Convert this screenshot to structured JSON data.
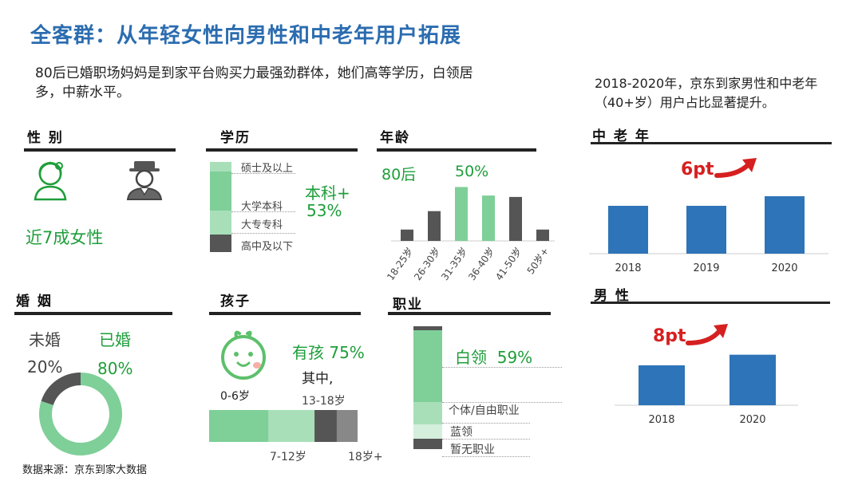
{
  "title": "全客群：从年轻女性向男性和中老年用户拓展",
  "intro": "80后已婚职场妈妈是到家平台购买力最强劲群体，她们高等学历，白领居多，中薪水平。",
  "right_intro": "2018-2020年，京东到家男性和中老年（40+岁）用户占比显著提升。",
  "source": "数据来源：京东到家大数据",
  "colors": {
    "green": "#1e9e3a",
    "bar_green": "#7fcf98",
    "light_green": "#a8dfb9",
    "dark_gray": "#555555",
    "blue": "#2e74b8",
    "red": "#d62020"
  },
  "gender": {
    "heading": "性 别",
    "text": "近7成女性",
    "icons": [
      "female-icon",
      "male-icon"
    ]
  },
  "education": {
    "heading": "学历",
    "summary_label": "本科+",
    "summary_value": "53%",
    "labels": [
      "硕士及以上",
      "大学本科",
      "大专专科",
      "高中及以下"
    ]
  },
  "age": {
    "heading": "年龄",
    "highlight_left": "80后",
    "highlight_right": "50%"
  },
  "marriage": {
    "heading": "婚 姻",
    "unmarried_label": "未婚",
    "married_label": "已婚",
    "unmarried_value": "20%",
    "married_value": "80%"
  },
  "children": {
    "heading": "孩子",
    "summary": "有孩 75%",
    "note": "其中,",
    "labels": {
      "a": "0-6岁",
      "b": "7-12岁",
      "c": "13-18岁",
      "d": "18岁+"
    }
  },
  "occupation": {
    "heading": "职业",
    "summary": "白领  59%",
    "labels": [
      "个体/自由职业",
      "蓝领",
      "暂无职业"
    ]
  },
  "middle_aged": {
    "heading": "中 老 年",
    "increase": "6pt"
  },
  "male": {
    "heading": "男 性",
    "increase": "8pt"
  },
  "chart_data": [
    {
      "type": "bar",
      "title": "年龄",
      "categories": [
        "18-25岁",
        "26-30岁",
        "31-35岁",
        "36-40岁",
        "41-50岁",
        "50岁+"
      ],
      "values": [
        8,
        21,
        38,
        32,
        31,
        8
      ],
      "ylim": [
        0,
        45
      ],
      "highlight": [
        "31-35岁",
        "36-40岁"
      ]
    },
    {
      "type": "bar",
      "title": "中 老 年",
      "categories": [
        "2018",
        "2019",
        "2020"
      ],
      "values": [
        30,
        30,
        36
      ],
      "ylim": [
        0,
        45
      ]
    },
    {
      "type": "bar",
      "title": "男 性",
      "categories": [
        "2018",
        "2020"
      ],
      "values": [
        30,
        38
      ],
      "ylim": [
        0,
        45
      ]
    },
    {
      "type": "pie",
      "title": "婚 姻",
      "categories": [
        "未婚",
        "已婚"
      ],
      "values": [
        20,
        80
      ]
    },
    {
      "type": "bar",
      "title": "孩子",
      "categories": [
        "0-6岁",
        "7-12岁",
        "13-18岁",
        "18岁+"
      ],
      "values": [
        40,
        31,
        15,
        14
      ]
    }
  ]
}
